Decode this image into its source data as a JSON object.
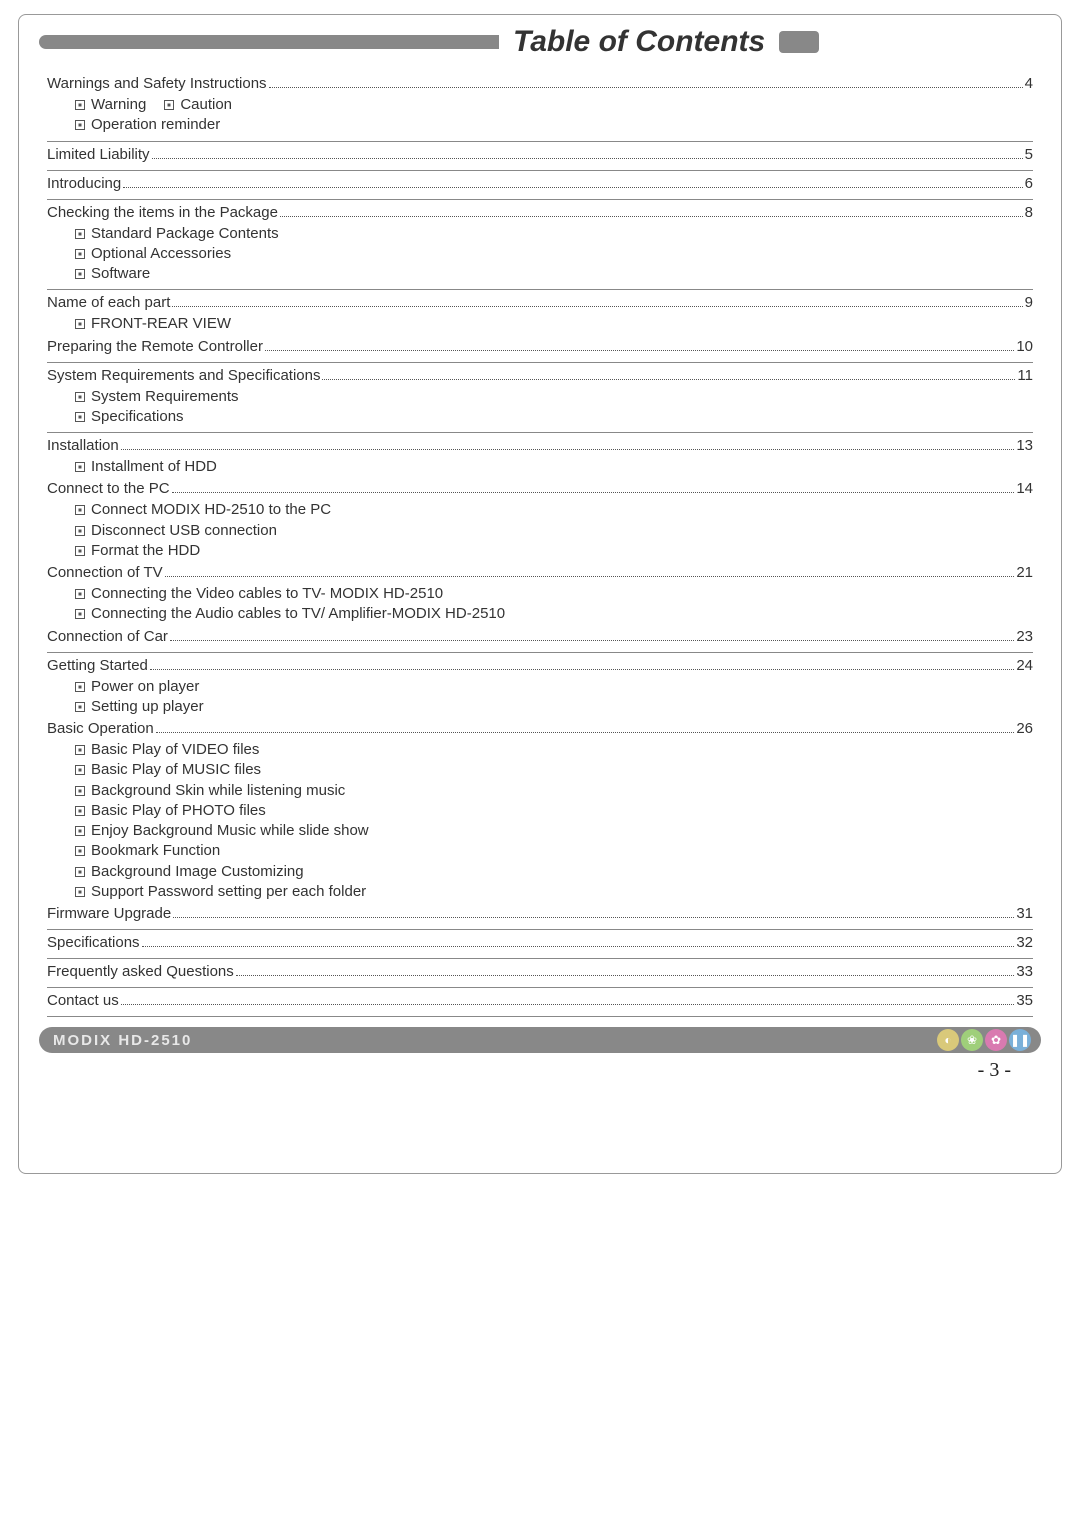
{
  "title": "Table of Contents",
  "toc": [
    {
      "label": "Warnings and  Safety Instructions",
      "page": "4",
      "subs_inline": [
        "Warning",
        "Caution"
      ],
      "subs": [
        "Operation reminder"
      ],
      "hr": true
    },
    {
      "label": "Limited Liability",
      "page": "5",
      "hr": true
    },
    {
      "label": "Introducing",
      "page": "6",
      "hr": true
    },
    {
      "label": "Checking the items in the Package",
      "page": "8",
      "subs": [
        "Standard Package Contents",
        "Optional Accessories",
        "Software"
      ],
      "hr": true
    },
    {
      "label": "Name of each part",
      "page": "9",
      "subs": [
        "FRONT-REAR VIEW"
      ]
    },
    {
      "label": "Preparing the Remote Controller",
      "page": "10",
      "hr": true
    },
    {
      "label": "System Requirements and Specifications",
      "page": "11",
      "subs": [
        "System Requirements",
        "Specifications"
      ],
      "hr": true
    },
    {
      "label": "Installation",
      "page": "13",
      "subs": [
        "Installment of HDD"
      ]
    },
    {
      "label": "Connect to the PC",
      "page": "14",
      "subs": [
        "Connect MODIX HD-2510 to the PC",
        "Disconnect USB connection",
        "Format the HDD"
      ]
    },
    {
      "label": "Connection of TV",
      "page": "21",
      "subs": [
        "Connecting the Video cables to TV- MODIX HD-2510",
        "Connecting the Audio cables to TV/ Amplifier-MODIX HD-2510"
      ]
    },
    {
      "label": "Connection of Car",
      "page": "23",
      "hr": true
    },
    {
      "label": "Getting Started",
      "page": "24",
      "subs": [
        "Power on player",
        "Setting up player"
      ]
    },
    {
      "label": "Basic Operation",
      "page": "26",
      "subs": [
        "Basic Play of VIDEO files",
        "Basic Play of MUSIC files",
        "Background Skin while listening music",
        "Basic Play of PHOTO files",
        "Enjoy Background Music while slide show",
        "Bookmark Function",
        "Background Image Customizing",
        "Support Password setting per each folder"
      ]
    },
    {
      "label": "Firmware Upgrade",
      "page": "31",
      "hr": true
    },
    {
      "label": "Specifications",
      "page": "32",
      "hr": true
    },
    {
      "label": "Frequently asked Questions",
      "page": "33",
      "hr": true
    },
    {
      "label": "Contact us",
      "page": "35",
      "hr": true
    }
  ],
  "footer": {
    "brand": "MODIX HD-2510",
    "icons": [
      {
        "bg": "#d9c97a",
        "sym": "◐"
      },
      {
        "bg": "#9fcf7a",
        "sym": "❀"
      },
      {
        "bg": "#d97ab0",
        "sym": "✿"
      },
      {
        "bg": "#7ab0d9",
        "sym": "❚❚"
      }
    ]
  },
  "page_number": "-  3  -",
  "colors": {
    "border": "#999999",
    "text": "#333333",
    "bar": "#888888"
  }
}
